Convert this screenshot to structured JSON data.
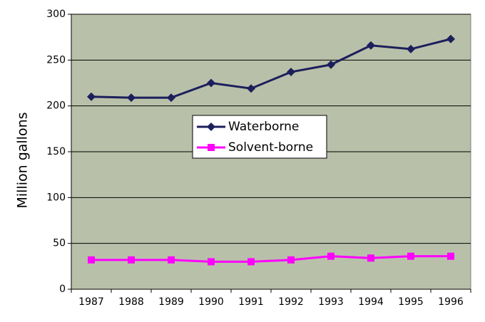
{
  "chart_data": {
    "type": "line",
    "y_label": "Million  gallons",
    "categories": [
      "1987",
      "1988",
      "1989",
      "1990",
      "1991",
      "1992",
      "1993",
      "1994",
      "1995",
      "1996"
    ],
    "series": [
      {
        "name": "Waterborne",
        "color": "#1c1f5c",
        "marker": "diamond",
        "values": [
          210,
          209,
          209,
          225,
          219,
          237,
          245,
          266,
          262,
          273
        ]
      },
      {
        "name": "Solvent-borne",
        "color": "#ff00ff",
        "marker": "square",
        "values": [
          32,
          32,
          32,
          30,
          30,
          32,
          36,
          34,
          36,
          36
        ]
      }
    ],
    "ylim": [
      0,
      300
    ],
    "yticks": [
      0,
      50,
      100,
      150,
      200,
      250,
      300
    ],
    "grid": true,
    "plot_background": "#b9c0a9"
  }
}
